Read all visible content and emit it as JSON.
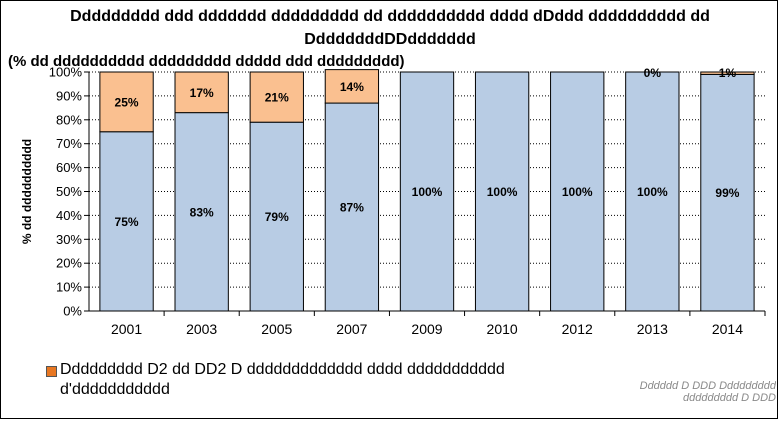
{
  "title_line1": "Ddddddddd ddd ddddddd ddddddddd dd dddddddddd dddd dDddd dddddddddd dd",
  "title_line2": "DdddddddDDddddddd",
  "subtitle": "(% dd dddddddddd ddddddddd ddddd ddd ddddddddd)",
  "source": "Dddddd  D DDD Ddddddddd  ddddddddd  D DDD",
  "legend_label": "Ddddddddd D2 dd DD2  D ddddddddddddd dddd ddddddddddd d'ddddddddddd",
  "colors": {
    "lower": "#b8cce4",
    "upper": "#fac090",
    "legend_marker": "#e87722",
    "grid": "#000000"
  },
  "chart_data": {
    "type": "bar",
    "stacked": true,
    "categories": [
      "2001",
      "2003",
      "2005",
      "2007",
      "2009",
      "2010",
      "2012",
      "2013",
      "2014"
    ],
    "series": [
      {
        "values": [
          75,
          83,
          79,
          87,
          100,
          100,
          100,
          100,
          99
        ],
        "labels": [
          "75%",
          "83%",
          "79%",
          "87%",
          "100%",
          "100%",
          "100%",
          "100%",
          "99%"
        ]
      },
      {
        "values": [
          25,
          17,
          21,
          14,
          0,
          0,
          0,
          0,
          1
        ],
        "labels": [
          "25%",
          "17%",
          "21%",
          "14%",
          "",
          "",
          "",
          "0%",
          "1%"
        ]
      }
    ],
    "ylabel": "% dd dddddddddd",
    "ylim": [
      0,
      100
    ],
    "yticks": [
      0,
      10,
      20,
      30,
      40,
      50,
      60,
      70,
      80,
      90,
      100
    ],
    "ytick_labels": [
      "0%",
      "10%",
      "20%",
      "30%",
      "40%",
      "50%",
      "60%",
      "70%",
      "80%",
      "90%",
      "100%"
    ],
    "grid": true,
    "legend_position": "bottom-left"
  }
}
